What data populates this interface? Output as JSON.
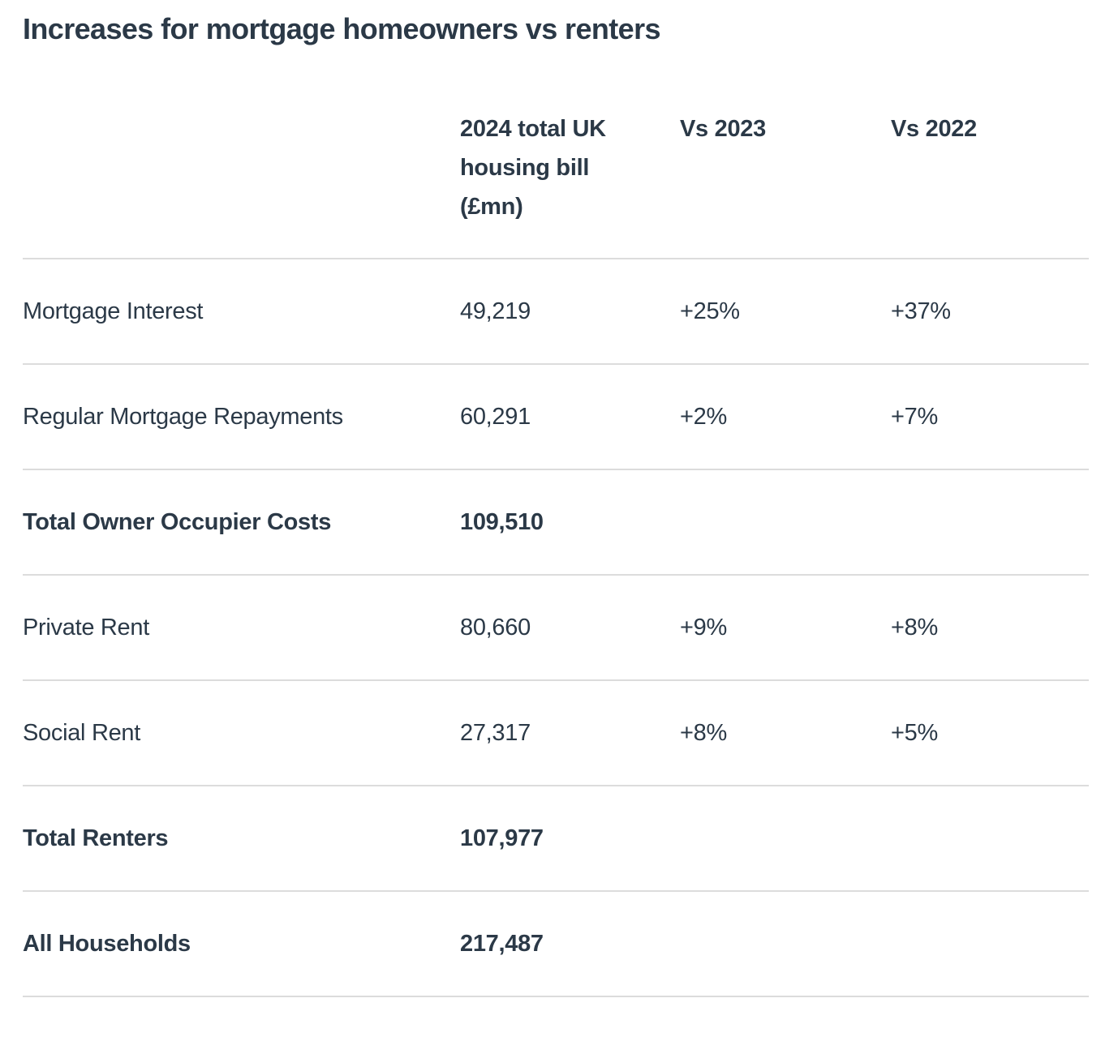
{
  "title": "Increases for mortgage homeowners vs renters",
  "chart_data": {
    "type": "table",
    "columns": {
      "label": "",
      "bill": "2024 total UK\nhousing bill\n(£mn)",
      "vs2023": "Vs 2023",
      "vs2022": "Vs 2022"
    },
    "rows": [
      {
        "label": "Mortgage Interest",
        "bill": "49,219",
        "vs2023": "+25%",
        "vs2022": "+37%",
        "bold": false
      },
      {
        "label": "Regular Mortgage Repayments",
        "bill": "60,291",
        "vs2023": "+2%",
        "vs2022": "+7%",
        "bold": false
      },
      {
        "label": "Total Owner Occupier Costs",
        "bill": "109,510",
        "vs2023": "",
        "vs2022": "",
        "bold": true
      },
      {
        "label": "Private Rent",
        "bill": "80,660",
        "vs2023": "+9%",
        "vs2022": "+8%",
        "bold": false
      },
      {
        "label": "Social Rent",
        "bill": "27,317",
        "vs2023": "+8%",
        "vs2022": "+5%",
        "bold": false
      },
      {
        "label": "Total Renters",
        "bill": "107,977",
        "vs2023": "",
        "vs2022": "",
        "bold": true
      },
      {
        "label": "All Households",
        "bill": "217,487",
        "vs2023": "",
        "vs2022": "",
        "bold": true
      }
    ]
  },
  "colors": {
    "text": "#2b3947",
    "divider": "#dcdcdc",
    "background": "#ffffff"
  }
}
